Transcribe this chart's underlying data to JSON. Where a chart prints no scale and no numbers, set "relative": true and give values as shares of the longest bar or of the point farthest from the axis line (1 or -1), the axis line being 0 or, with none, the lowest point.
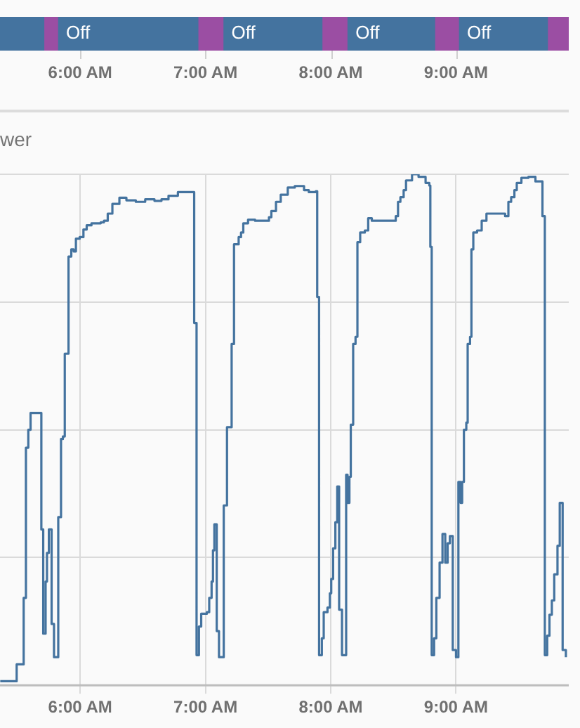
{
  "chart_data": [
    {
      "type": "bar",
      "orientation": "horizontal",
      "categories": [
        null
      ],
      "xlim": [
        5.36,
        9.9
      ],
      "xticks": [
        {
          "value": 6,
          "label": "6:00 AM"
        },
        {
          "value": 7,
          "label": "7:00 AM"
        },
        {
          "value": 8,
          "label": "8:00 AM"
        },
        {
          "value": 9,
          "label": "9:00 AM"
        }
      ],
      "tick_labels": "x",
      "series": [
        {
          "color": "#44739f",
          "base": [
            5.36
          ],
          "values": [
            0.35
          ],
          "value_labels": [
            null
          ]
        },
        {
          "color": "#9b4ea3",
          "base": [
            5.71
          ],
          "values": [
            0.11
          ],
          "value_labels": [
            null
          ]
        },
        {
          "color": "#44739f",
          "base": [
            5.82
          ],
          "values": [
            1.12
          ],
          "value_labels": [
            "Off"
          ]
        },
        {
          "color": "#9b4ea3",
          "base": [
            6.94
          ],
          "values": [
            0.2
          ],
          "value_labels": [
            null
          ]
        },
        {
          "color": "#44739f",
          "base": [
            7.14
          ],
          "values": [
            0.79
          ],
          "value_labels": [
            "Off"
          ]
        },
        {
          "color": "#9b4ea3",
          "base": [
            7.93
          ],
          "values": [
            0.2
          ],
          "value_labels": [
            null
          ]
        },
        {
          "color": "#44739f",
          "base": [
            8.13
          ],
          "values": [
            0.7
          ],
          "value_labels": [
            "Off"
          ]
        },
        {
          "color": "#9b4ea3",
          "base": [
            8.83
          ],
          "values": [
            0.19
          ],
          "value_labels": [
            null
          ]
        },
        {
          "color": "#44739f",
          "base": [
            9.02
          ],
          "values": [
            0.71
          ],
          "value_labels": [
            "Off"
          ]
        },
        {
          "color": "#9b4ea3",
          "base": [
            9.73
          ],
          "values": [
            0.17
          ],
          "value_labels": [
            null
          ]
        }
      ]
    },
    {
      "type": "step",
      "title": "wer",
      "relative": true,
      "grid": true,
      "marker": "none",
      "line_style": "solid",
      "xlim": [
        5.36,
        9.9
      ],
      "xticks": [
        {
          "value": 6,
          "label": "6:00 AM"
        },
        {
          "value": 7,
          "label": "7:00 AM"
        },
        {
          "value": 8,
          "label": "8:00 AM"
        },
        {
          "value": 9,
          "label": "9:00 AM"
        }
      ],
      "series": [
        {
          "color": "#44739f",
          "x": [
            5.362,
            5.493,
            5.549,
            5.567,
            5.586,
            5.604,
            5.69,
            5.705,
            5.724,
            5.735,
            5.75,
            5.772,
            5.791,
            5.825,
            5.847,
            5.862,
            5.877,
            5.907,
            5.929,
            5.948,
            5.966,
            5.996,
            6.026,
            6.052,
            6.09,
            6.164,
            6.19,
            6.22,
            6.257,
            6.313,
            6.369,
            6.444,
            6.519,
            6.593,
            6.649,
            6.705,
            6.78,
            6.91,
            6.929,
            6.948,
            6.966,
            7.011,
            7.03,
            7.049,
            7.06,
            7.071,
            7.09,
            7.108,
            7.146,
            7.172,
            7.209,
            7.228,
            7.265,
            7.284,
            7.302,
            7.34,
            7.396,
            7.507,
            7.526,
            7.563,
            7.601,
            7.657,
            7.713,
            7.787,
            7.825,
            7.881,
            7.892,
            7.907,
            7.929,
            7.944,
            7.974,
            7.993,
            8.004,
            8.019,
            8.037,
            8.052,
            8.067,
            8.09,
            8.123,
            8.134,
            8.149,
            8.16,
            8.179,
            8.198,
            8.213,
            8.235,
            8.272,
            8.299,
            8.328,
            8.519,
            8.537,
            8.556,
            8.582,
            8.601,
            8.649,
            8.701,
            8.757,
            8.787,
            8.795,
            8.806,
            8.825,
            8.843,
            8.869,
            8.892,
            8.914,
            8.933,
            8.951,
            8.974,
            9.0,
            9.019,
            9.037,
            9.049,
            9.063,
            9.082,
            9.093,
            9.112,
            9.123,
            9.138,
            9.168,
            9.205,
            9.243,
            9.392,
            9.418,
            9.44,
            9.466,
            9.485,
            9.522,
            9.578,
            9.634,
            9.683,
            9.69,
            9.709,
            9.728,
            9.746,
            9.765,
            9.784,
            9.81,
            9.828,
            9.851,
            9.877
          ],
          "values": [
            0.008,
            0.041,
            0.171,
            0.465,
            0.5,
            0.533,
            0.305,
            0.101,
            0.203,
            0.259,
            0.305,
            0.12,
            0.055,
            0.329,
            0.482,
            0.487,
            0.649,
            0.839,
            0.853,
            0.849,
            0.874,
            0.877,
            0.892,
            0.9,
            0.904,
            0.906,
            0.909,
            0.923,
            0.942,
            0.954,
            0.949,
            0.946,
            0.951,
            0.948,
            0.951,
            0.958,
            0.965,
            0.709,
            0.059,
            0.115,
            0.14,
            0.143,
            0.171,
            0.203,
            0.264,
            0.315,
            0.106,
            0.055,
            0.352,
            0.505,
            0.668,
            0.863,
            0.877,
            0.886,
            0.904,
            0.911,
            0.909,
            0.916,
            0.928,
            0.946,
            0.96,
            0.974,
            0.977,
            0.969,
            0.965,
            0.967,
            0.76,
            0.059,
            0.092,
            0.143,
            0.152,
            0.18,
            0.208,
            0.268,
            0.319,
            0.389,
            0.148,
            0.059,
            0.412,
            0.357,
            0.408,
            0.51,
            0.668,
            0.682,
            0.867,
            0.886,
            0.89,
            0.914,
            0.909,
            0.918,
            0.946,
            0.955,
            0.969,
            0.988,
            1,
            0.995,
            0.983,
            0.978,
            0.858,
            0.059,
            0.092,
            0.171,
            0.24,
            0.296,
            0.24,
            0.278,
            0.292,
            0.069,
            0.055,
            0.398,
            0.357,
            0.398,
            0.5,
            0.514,
            0.668,
            0.682,
            0.853,
            0.886,
            0.89,
            0.909,
            0.923,
            0.918,
            0.946,
            0.955,
            0.969,
            0.983,
            0.993,
            0.995,
            0.986,
            0.986,
            0.918,
            0.059,
            0.097,
            0.138,
            0.166,
            0.217,
            0.273,
            0.357,
            0.069,
            0.055
          ]
        }
      ]
    }
  ]
}
